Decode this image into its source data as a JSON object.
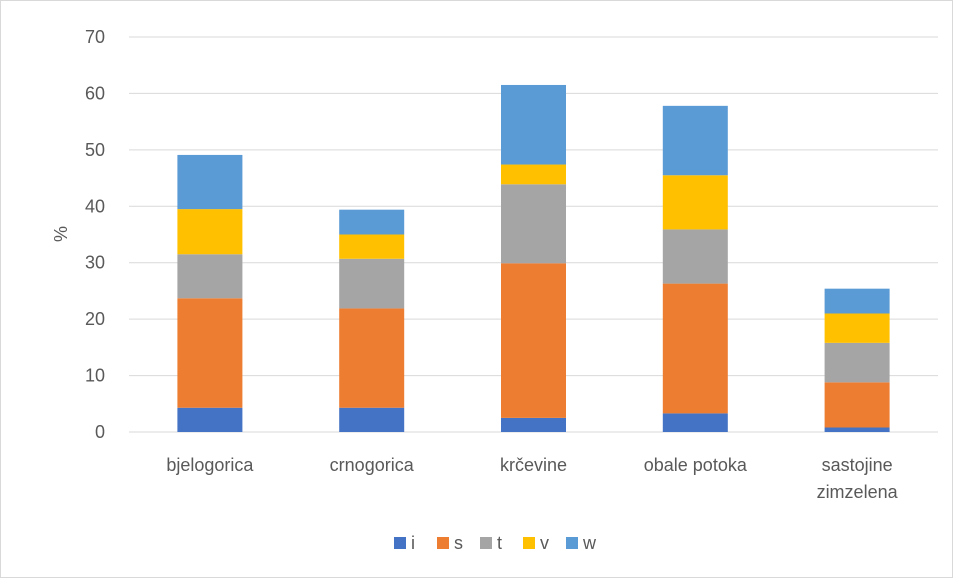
{
  "chart_data": {
    "type": "bar",
    "stacked": true,
    "ylabel": "%",
    "xlabel": "",
    "ylim": [
      0,
      70
    ],
    "yticks": [
      0,
      10,
      20,
      30,
      40,
      50,
      60,
      70
    ],
    "grid": "horizontal",
    "legend_position": "bottom",
    "categories": [
      [
        "bjelogorica"
      ],
      [
        "crnogorica"
      ],
      [
        "krčevine"
      ],
      [
        "obale potoka"
      ],
      [
        "sastojine",
        "zimzelena"
      ]
    ],
    "series": [
      {
        "name": "i",
        "color": "#4472c4",
        "values": [
          4.3,
          4.3,
          2.5,
          3.3,
          0.8
        ]
      },
      {
        "name": "s",
        "color": "#ed7d31",
        "values": [
          19.4,
          17.6,
          27.4,
          23.0,
          8.0
        ]
      },
      {
        "name": "t",
        "color": "#a5a5a5",
        "values": [
          7.8,
          8.8,
          14.0,
          9.6,
          7.0
        ]
      },
      {
        "name": "v",
        "color": "#ffc000",
        "values": [
          8.0,
          4.3,
          3.5,
          9.6,
          5.2
        ]
      },
      {
        "name": "w",
        "color": "#5b9bd5",
        "values": [
          9.6,
          4.4,
          14.1,
          12.3,
          4.4
        ]
      }
    ]
  }
}
